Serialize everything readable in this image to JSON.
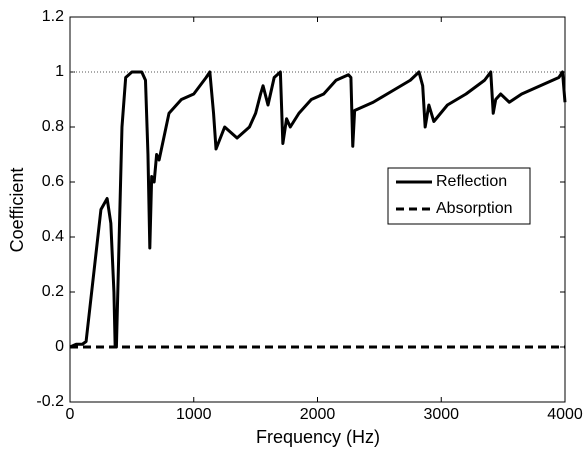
{
  "chart_data": {
    "type": "line",
    "x_label": "Frequency (Hz)",
    "y_label": "Coefficient",
    "x": [
      0,
      50,
      100,
      130,
      200,
      250,
      300,
      330,
      355,
      365,
      375,
      420,
      450,
      500,
      580,
      610,
      630,
      645,
      660,
      680,
      700,
      720,
      800,
      900,
      1000,
      1100,
      1130,
      1160,
      1180,
      1250,
      1350,
      1450,
      1500,
      1540,
      1560,
      1600,
      1650,
      1700,
      1720,
      1750,
      1780,
      1850,
      1950,
      2050,
      2150,
      2250,
      2270,
      2285,
      2300,
      2350,
      2450,
      2600,
      2750,
      2820,
      2850,
      2870,
      2900,
      2940,
      3050,
      3200,
      3350,
      3400,
      3420,
      3440,
      3480,
      3550,
      3650,
      3800,
      3950,
      3980,
      4000
    ],
    "series": [
      {
        "name": "Reflection",
        "color": "#000000",
        "style": "solid",
        "values": [
          0,
          0.01,
          0.01,
          0.02,
          0.3,
          0.5,
          0.54,
          0.45,
          0.2,
          0,
          0,
          0.8,
          0.98,
          1,
          1,
          0.97,
          0.7,
          0.36,
          0.62,
          0.6,
          0.7,
          0.68,
          0.85,
          0.9,
          0.92,
          0.98,
          1,
          0.85,
          0.72,
          0.8,
          0.76,
          0.8,
          0.85,
          0.92,
          0.95,
          0.88,
          0.98,
          1,
          0.74,
          0.83,
          0.8,
          0.85,
          0.9,
          0.92,
          0.97,
          0.99,
          0.98,
          0.73,
          0.86,
          0.87,
          0.89,
          0.93,
          0.97,
          1,
          0.95,
          0.8,
          0.88,
          0.82,
          0.88,
          0.92,
          0.97,
          1,
          0.85,
          0.9,
          0.92,
          0.89,
          0.92,
          0.95,
          0.98,
          1,
          0.89
        ]
      },
      {
        "name": "Absorption",
        "color": "#000000",
        "style": "dashed",
        "values": [
          0,
          0,
          0,
          0,
          0,
          0,
          0,
          0,
          0,
          0,
          0,
          0,
          0,
          0,
          0,
          0,
          0,
          0,
          0,
          0,
          0,
          0,
          0,
          0,
          0,
          0,
          0,
          0,
          0,
          0,
          0,
          0,
          0,
          0,
          0,
          0,
          0,
          0,
          0,
          0,
          0,
          0,
          0,
          0,
          0,
          0,
          0,
          0,
          0,
          0,
          0,
          0,
          0,
          0,
          0,
          0,
          0,
          0,
          0,
          0,
          0,
          0,
          0,
          0,
          0,
          0,
          0,
          0,
          0,
          0,
          0
        ]
      }
    ],
    "reference_line": 1,
    "xlim": [
      0,
      4000
    ],
    "xticks": [
      0,
      1000,
      2000,
      3000,
      4000
    ],
    "ylim": [
      -0.2,
      1.2
    ],
    "yticks": [
      -0.2,
      0,
      0.2,
      0.4,
      0.6,
      0.8,
      1,
      1.2
    ],
    "legend": "right",
    "grid": false
  }
}
